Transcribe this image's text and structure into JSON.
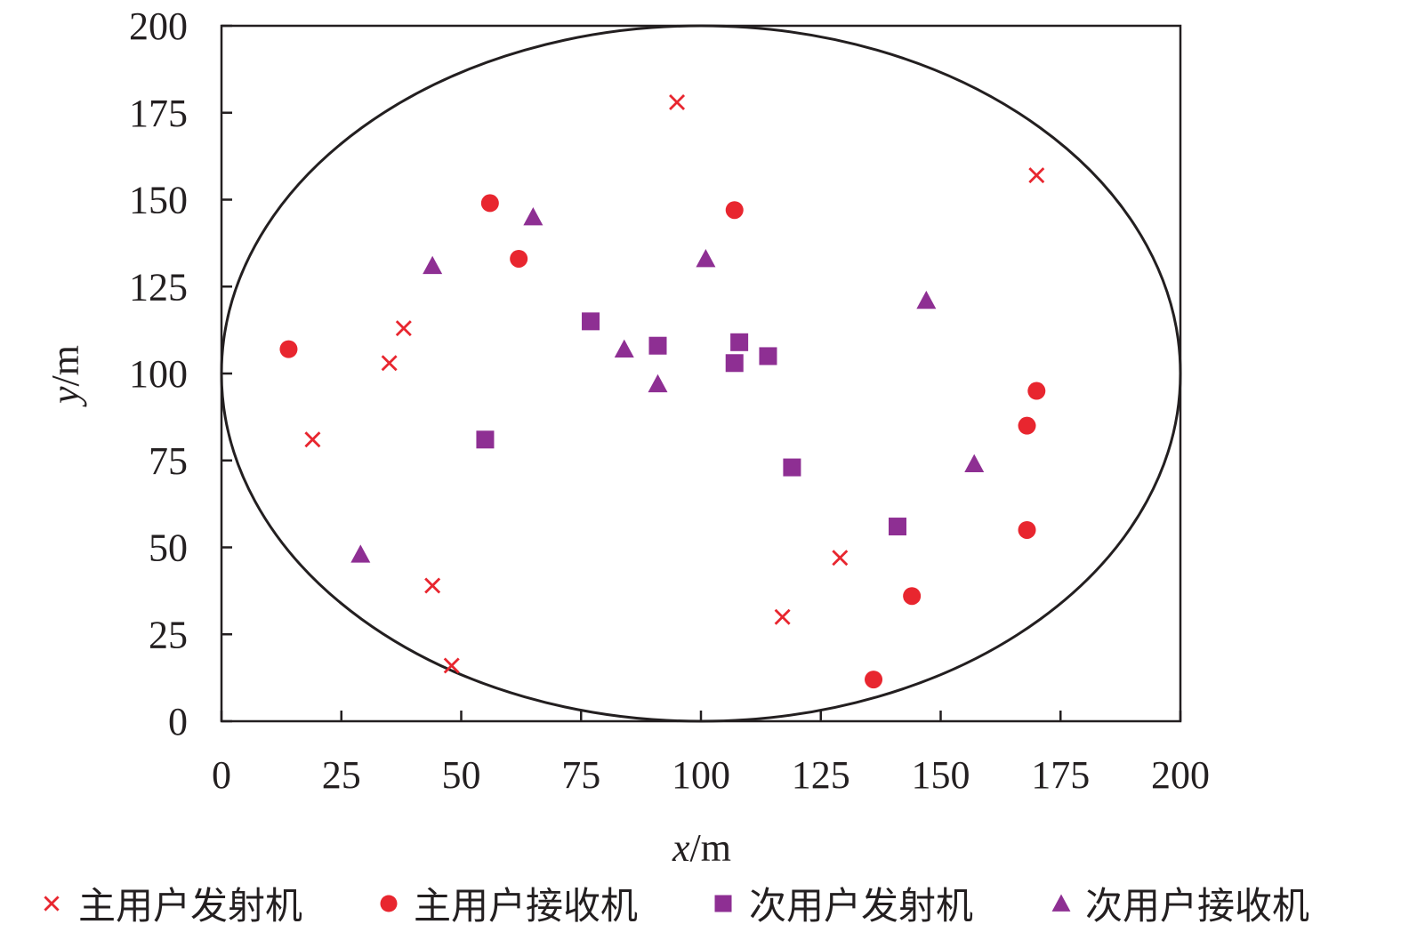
{
  "chart_data": {
    "type": "scatter",
    "title": "",
    "xlabel": {
      "var": "x",
      "unit": "/m"
    },
    "ylabel": {
      "var": "y",
      "unit": "/m"
    },
    "xlim": [
      0,
      200
    ],
    "ylim": [
      0,
      200
    ],
    "xticks": [
      "0",
      "25",
      "50",
      "75",
      "100",
      "125",
      "150",
      "175",
      "200"
    ],
    "yticks": [
      "0",
      "25",
      "50",
      "75",
      "100",
      "125",
      "150",
      "175",
      "200"
    ],
    "grid": false,
    "legend_position": "bottom",
    "boundary": {
      "shape": "ellipse",
      "center": [
        100,
        100
      ],
      "radius_x": 100,
      "radius_y": 100
    },
    "series": [
      {
        "name": "主用户发射机",
        "marker": "x",
        "color": "#e8262f",
        "points": [
          [
            95,
            178
          ],
          [
            170,
            157
          ],
          [
            38,
            113
          ],
          [
            35,
            103
          ],
          [
            19,
            81
          ],
          [
            129,
            47
          ],
          [
            44,
            39
          ],
          [
            117,
            30
          ],
          [
            48,
            16
          ]
        ]
      },
      {
        "name": "主用户接收机",
        "marker": "circle",
        "color": "#e8262f",
        "points": [
          [
            56,
            149
          ],
          [
            107,
            147
          ],
          [
            62,
            133
          ],
          [
            14,
            107
          ],
          [
            170,
            95
          ],
          [
            168,
            85
          ],
          [
            168,
            55
          ],
          [
            144,
            36
          ],
          [
            136,
            12
          ]
        ]
      },
      {
        "name": "次用户发射机",
        "marker": "square",
        "color": "#8e2f93",
        "points": [
          [
            77,
            115
          ],
          [
            91,
            108
          ],
          [
            108,
            109
          ],
          [
            107,
            103
          ],
          [
            114,
            105
          ],
          [
            55,
            81
          ],
          [
            119,
            73
          ],
          [
            141,
            56
          ]
        ]
      },
      {
        "name": "次用户接收机",
        "marker": "triangle",
        "color": "#8e2f93",
        "points": [
          [
            65,
            145
          ],
          [
            44,
            131
          ],
          [
            101,
            133
          ],
          [
            147,
            121
          ],
          [
            84,
            107
          ],
          [
            91,
            97
          ],
          [
            157,
            74
          ],
          [
            29,
            48
          ]
        ]
      }
    ]
  }
}
